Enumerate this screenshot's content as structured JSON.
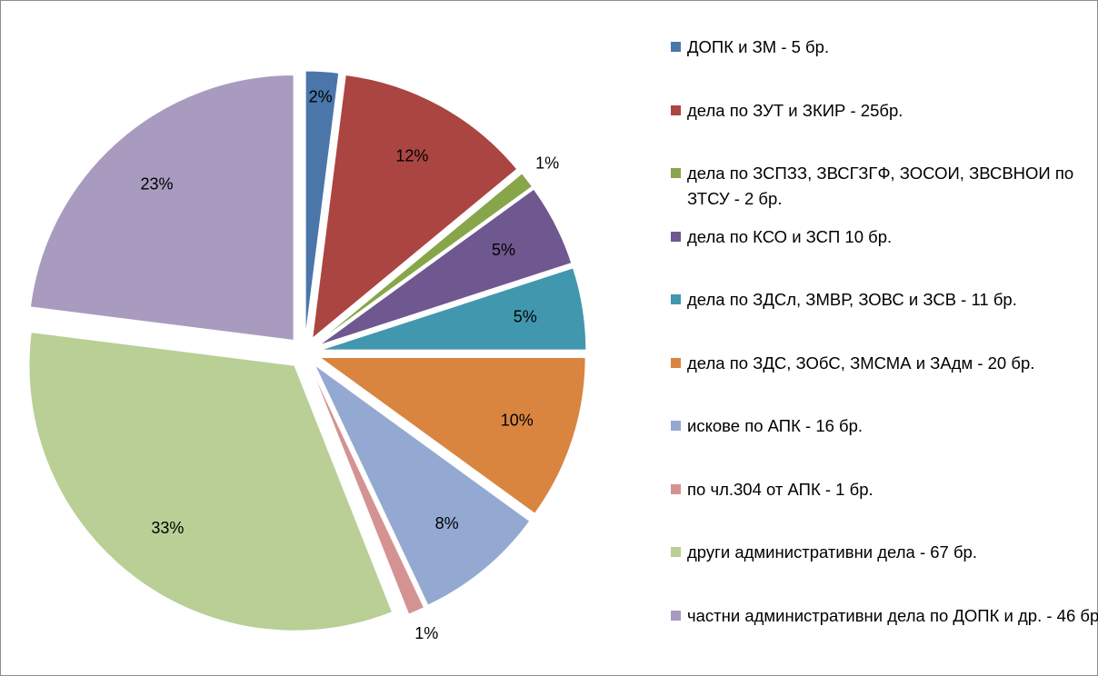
{
  "chart_data": {
    "type": "pie",
    "categories": [
      "ДОПК и ЗМ - 5 бр.",
      "дела по ЗУТ и ЗКИР - 25бр.",
      "дела по ЗСПЗЗ, ЗВСГЗГФ, ЗОСОИ, ЗВСВНОИ по ЗТСУ - 2 бр.",
      "дела по КСО и ЗСП 10 бр.",
      "дела по ЗДСл, ЗМВР, ЗОВС и ЗСВ - 11 бр.",
      "дела по ЗДС, ЗОбС, ЗМСМА и ЗАдм - 20 бр.",
      "искове по АПК - 16 бр.",
      "по чл.304 от АПК - 1 бр.",
      "други административни дела - 67 бр.",
      "частни административни дела по ДОПК и др. - 46 бр."
    ],
    "values": [
      2,
      12,
      1,
      5,
      5,
      10,
      8,
      1,
      33,
      23
    ],
    "value_labels": [
      "2%",
      "12%",
      "1%",
      "5%",
      "5%",
      "10%",
      "8%",
      "1%",
      "33%",
      "23%"
    ],
    "colors": [
      "#4a76aa",
      "#ab4542",
      "#87a64a",
      "#6f5790",
      "#4197ae",
      "#d98540",
      "#93a9d1",
      "#d49392",
      "#b9cf95",
      "#a89bbf"
    ],
    "legend": "right"
  }
}
